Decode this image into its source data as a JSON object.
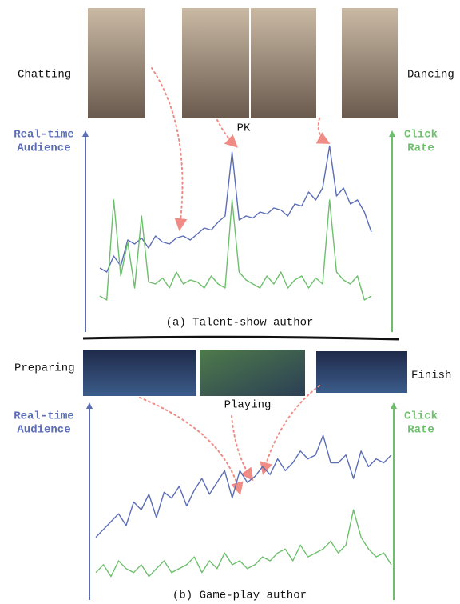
{
  "chart_data": [
    {
      "type": "line",
      "title": "(a) Talent-show author",
      "ylabel": [
        "Real-time",
        "Audience"
      ],
      "y2label": [
        "Click",
        "Rate"
      ],
      "annotations": [
        "Chatting",
        "PK",
        "Dancing"
      ],
      "ylim": [
        0,
        100
      ],
      "y2lim": [
        0,
        100
      ],
      "series": [
        {
          "color": "#5b6db5",
          "values": [
            32,
            30,
            38,
            33,
            46,
            44,
            47,
            42,
            48,
            45,
            44,
            47,
            48,
            46,
            49,
            52,
            51,
            55,
            58,
            90,
            56,
            58,
            57,
            60,
            59,
            62,
            61,
            58,
            64,
            63,
            70,
            66,
            72,
            93,
            68,
            72,
            64,
            66,
            60,
            50
          ]
        },
        {
          "color": "#6dbf6d",
          "axis": "y2",
          "values": [
            18,
            16,
            66,
            28,
            45,
            22,
            58,
            25,
            24,
            27,
            22,
            30,
            24,
            26,
            25,
            22,
            28,
            24,
            22,
            66,
            30,
            26,
            24,
            22,
            28,
            24,
            30,
            22,
            26,
            28,
            22,
            27,
            24,
            66,
            30,
            26,
            24,
            28,
            16,
            18
          ]
        }
      ]
    },
    {
      "type": "line",
      "title": "(b) Game-play author",
      "ylabel": [
        "Real-time",
        "Audience"
      ],
      "y2label": [
        "Click",
        "Rate"
      ],
      "annotations": [
        "Preparing",
        "Playing",
        "Finish"
      ],
      "ylim": [
        0,
        100
      ],
      "y2lim": [
        0,
        100
      ],
      "series": [
        {
          "color": "#5b6db5",
          "values": [
            32,
            36,
            40,
            44,
            38,
            50,
            46,
            54,
            42,
            55,
            52,
            58,
            48,
            56,
            62,
            54,
            60,
            66,
            52,
            66,
            60,
            63,
            68,
            64,
            72,
            66,
            70,
            76,
            72,
            74,
            84,
            70,
            70,
            74,
            62,
            76,
            68,
            72,
            70,
            74
          ]
        },
        {
          "color": "#6dbf6d",
          "axis": "y2",
          "values": [
            14,
            18,
            12,
            20,
            16,
            14,
            18,
            12,
            16,
            20,
            14,
            16,
            18,
            22,
            14,
            20,
            16,
            24,
            18,
            20,
            16,
            18,
            22,
            20,
            24,
            26,
            20,
            28,
            22,
            24,
            26,
            30,
            24,
            28,
            46,
            32,
            26,
            22,
            24,
            18
          ]
        }
      ]
    }
  ]
}
